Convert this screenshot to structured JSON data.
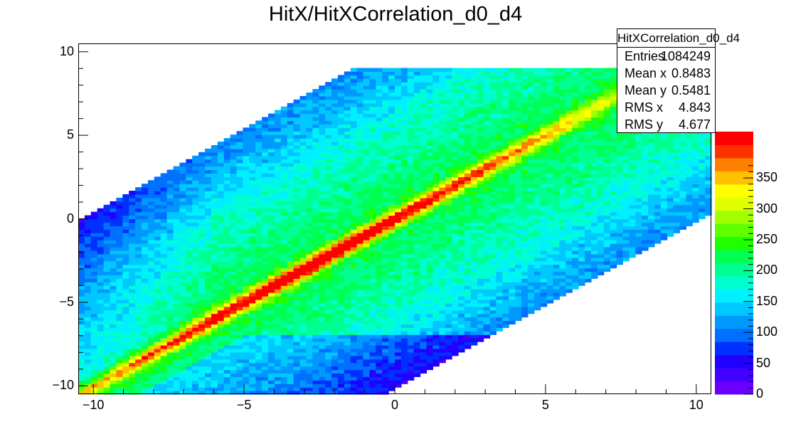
{
  "chart_data": {
    "type": "heatmap",
    "title": "HitX/HitXCorrelation_d0_d4",
    "xlabel": "",
    "ylabel": "",
    "xlim": [
      -10.5,
      10.5
    ],
    "ylim": [
      -10.5,
      10.5
    ],
    "zlim": [
      0,
      425
    ],
    "x_ticks": [
      "−10",
      "−5",
      "0",
      "5",
      "10"
    ],
    "y_ticks": [
      "−10",
      "−5",
      "0",
      "5",
      "10"
    ],
    "z_ticks": [
      "0",
      "50",
      "100",
      "150",
      "200",
      "250",
      "300",
      "350"
    ],
    "grid": false,
    "description_of_distribution": {
      "diagonal_band": "y ≈ x, counts peak ~420 near x=-2.5",
      "populated_region": "parallelogram between y ≈ x-10 and y ≈ x+10, clipped to y in [-10.5, 9]",
      "background_level": "~150-250 counts inside the band region, ~60 near edges"
    },
    "palette": [
      "#6a00ff",
      "#4400ff",
      "#2200ff",
      "#0030ff",
      "#0070ff",
      "#0098ff",
      "#00c8ff",
      "#00f0ff",
      "#00ffd0",
      "#00ff90",
      "#00ff50",
      "#20ff00",
      "#60ff00",
      "#a0ff00",
      "#e0ff00",
      "#ffff00",
      "#ffc000",
      "#ff8000",
      "#ff3000",
      "#ff0000"
    ]
  },
  "stats_box": {
    "title": "HitXCorrelation_d0_d4",
    "rows": [
      {
        "label": "Entries",
        "value": "1084249"
      },
      {
        "label": "Mean x",
        "value": "0.8483"
      },
      {
        "label": "Mean y",
        "value": "0.5481"
      },
      {
        "label": "RMS x",
        "value": "4.843"
      },
      {
        "label": "RMS y",
        "value": "4.677"
      }
    ]
  }
}
